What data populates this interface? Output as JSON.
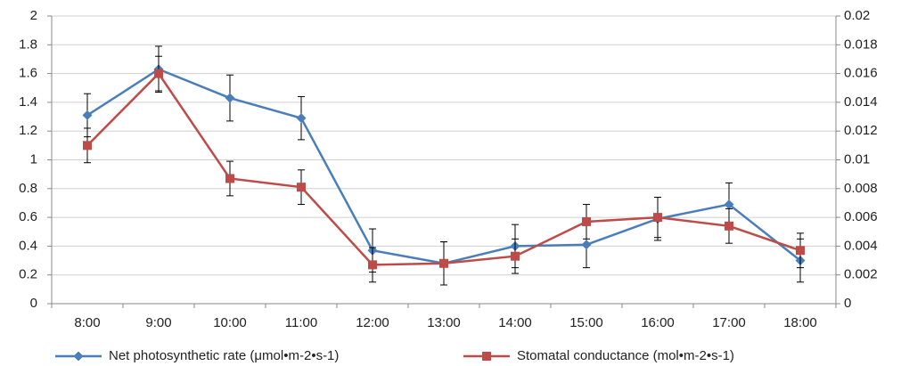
{
  "chart_data": {
    "type": "line",
    "categories": [
      "8:00",
      "9:00",
      "10:00",
      "11:00",
      "12:00",
      "13:00",
      "14:00",
      "15:00",
      "16:00",
      "17:00",
      "18:00"
    ],
    "series": [
      {
        "name": "Net photosynthetic rate (μmol•m-2•s-1)",
        "color": "#4a7ebb",
        "marker": "diamond",
        "values": [
          1.31,
          1.63,
          1.43,
          1.29,
          0.37,
          0.28,
          0.4,
          0.41,
          0.59,
          0.69,
          0.3
        ],
        "errors": [
          0.15,
          0.16,
          0.16,
          0.15,
          0.15,
          0.15,
          0.15,
          0.16,
          0.15,
          0.15,
          0.15
        ]
      },
      {
        "name": "Stomatal conductance (mol•m-2•s-1)",
        "color": "#be4b48",
        "marker": "square",
        "axis": "y2",
        "values": [
          0.011,
          0.016,
          0.0087,
          0.0081,
          0.0027,
          0.0028,
          0.0033,
          0.0057,
          0.006,
          0.0054,
          0.0037
        ],
        "errors": [
          0.0012,
          0.0012,
          0.0012,
          0.0012,
          0.0012,
          0.0015,
          0.0012,
          0.0012,
          0.0014,
          0.0012,
          0.0012
        ]
      }
    ],
    "ylim": [
      0,
      2
    ],
    "yticks": [
      0,
      0.2,
      0.4,
      0.6,
      0.8,
      1,
      1.2,
      1.4,
      1.6,
      1.8,
      2
    ],
    "y2lim": [
      0,
      0.02
    ],
    "y2ticks": [
      0,
      0.002,
      0.004,
      0.006,
      0.008,
      0.01,
      0.012,
      0.014,
      0.016,
      0.018,
      0.02
    ],
    "grid": true,
    "legend": "bottom"
  }
}
